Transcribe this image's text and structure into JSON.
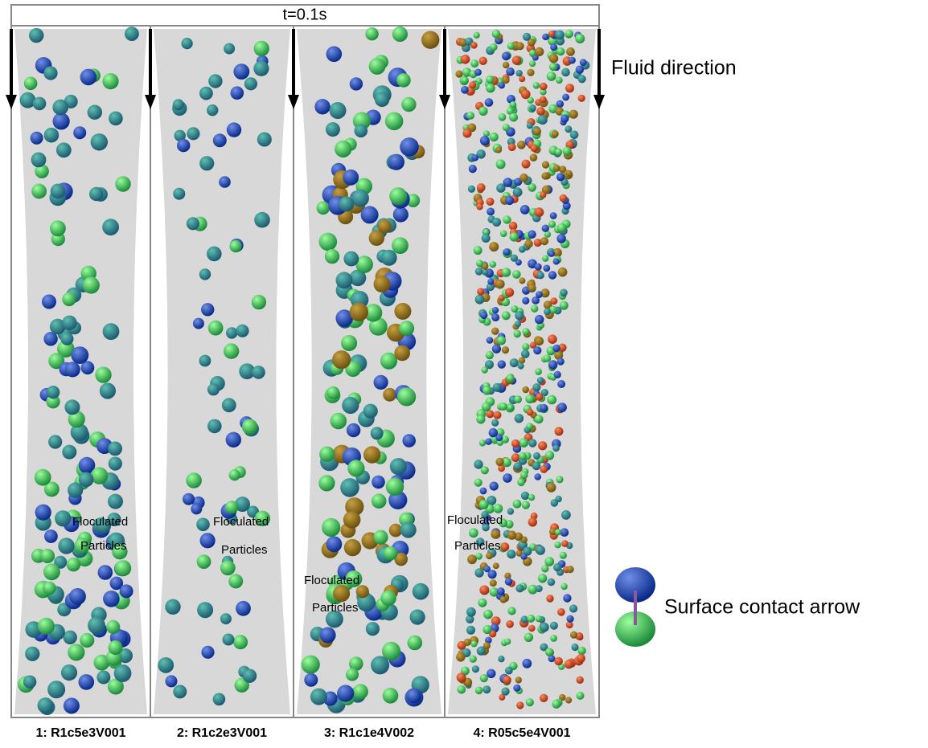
{
  "header": {
    "title": "t=0.1s"
  },
  "legend": {
    "flow": "Fluid direction",
    "contact": "Surface contact arrow"
  },
  "panels": [
    {
      "label": "1: R1c5e3V001",
      "annotation": [
        "Floculated",
        "Particles"
      ]
    },
    {
      "label": "2: R1c2e3V001",
      "annotation": [
        "Floculated",
        "Particles"
      ]
    },
    {
      "label": "3: R1c1e4V002",
      "annotation": [
        "Floculated",
        "Particles"
      ]
    },
    {
      "label": "4: R05c5e4V001",
      "annotation": [
        "Floculated",
        "Particles"
      ]
    }
  ]
}
